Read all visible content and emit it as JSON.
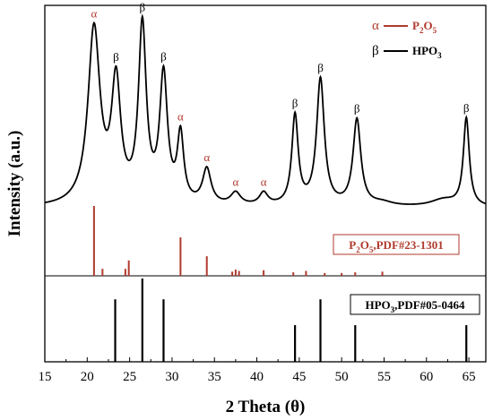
{
  "chart_data": {
    "type": "line",
    "xlabel": "2 Theta (θ)",
    "ylabel": "Intensity (a.u.)",
    "xlim": [
      15,
      67
    ],
    "x_ticks": [
      "15",
      "20",
      "25",
      "30",
      "35",
      "40",
      "45",
      "50",
      "55",
      "60",
      "65"
    ],
    "y_ticks_shown": false,
    "grid": false,
    "legend_position": "top-right",
    "legend": [
      {
        "symbol": "α",
        "sub_parts": [
          "P",
          "2",
          "O",
          "5"
        ],
        "text": "P2O5",
        "color": "#b03a2e"
      },
      {
        "symbol": "β",
        "sub_parts": [
          "HPO",
          "3"
        ],
        "text": "HPO3",
        "color": "#000000"
      }
    ],
    "series": [
      {
        "type": "line",
        "color": "#000000",
        "baseline": 0,
        "peaks": [
          {
            "x": 20.8,
            "h": 1.0,
            "w": 0.85
          },
          {
            "x": 23.4,
            "h": 0.67,
            "w": 0.65
          },
          {
            "x": 26.5,
            "h": 1.0,
            "w": 0.55
          },
          {
            "x": 29.0,
            "h": 0.72,
            "w": 0.55
          },
          {
            "x": 31.0,
            "h": 0.38,
            "w": 0.45
          },
          {
            "x": 34.1,
            "h": 0.2,
            "w": 0.6
          },
          {
            "x": 37.5,
            "h": 0.07,
            "w": 0.7
          },
          {
            "x": 40.8,
            "h": 0.07,
            "w": 0.6
          },
          {
            "x": 44.5,
            "h": 0.51,
            "w": 0.45
          },
          {
            "x": 47.5,
            "h": 0.72,
            "w": 0.55
          },
          {
            "x": 51.8,
            "h": 0.49,
            "w": 0.55
          },
          {
            "x": 54.8,
            "h": 0.02,
            "w": 1.5
          },
          {
            "x": 62.0,
            "h": 0.04,
            "w": 1.8
          },
          {
            "x": 64.7,
            "h": 0.5,
            "w": 0.42
          }
        ]
      }
    ],
    "peak_labels": [
      {
        "x": 20.8,
        "label": "α",
        "color": "#b03a2e"
      },
      {
        "x": 23.4,
        "label": "β",
        "color": "#000000"
      },
      {
        "x": 26.5,
        "label": "β",
        "color": "#000000"
      },
      {
        "x": 29.0,
        "label": "β",
        "color": "#000000"
      },
      {
        "x": 31.0,
        "label": "α",
        "color": "#b03a2e"
      },
      {
        "x": 34.1,
        "label": "α",
        "color": "#b03a2e"
      },
      {
        "x": 37.5,
        "label": "α",
        "color": "#b03a2e"
      },
      {
        "x": 40.8,
        "label": "α",
        "color": "#b03a2e"
      },
      {
        "x": 44.5,
        "label": "β",
        "color": "#000000"
      },
      {
        "x": 47.5,
        "label": "β",
        "color": "#000000"
      },
      {
        "x": 51.8,
        "label": "β",
        "color": "#000000"
      },
      {
        "x": 64.7,
        "label": "β",
        "color": "#000000"
      }
    ],
    "references": [
      {
        "sub_parts": [
          "P",
          "2",
          "O",
          "5",
          ",PDF#23-1301"
        ],
        "name": "P2O5,PDF#23-1301",
        "color": "#b03a2e",
        "label_box": true,
        "sticks": [
          {
            "x": 20.8,
            "h": 1.0
          },
          {
            "x": 21.8,
            "h": 0.1
          },
          {
            "x": 24.5,
            "h": 0.1
          },
          {
            "x": 24.9,
            "h": 0.22
          },
          {
            "x": 31.0,
            "h": 0.55
          },
          {
            "x": 34.1,
            "h": 0.28
          },
          {
            "x": 37.1,
            "h": 0.06
          },
          {
            "x": 37.5,
            "h": 0.09
          },
          {
            "x": 37.9,
            "h": 0.07
          },
          {
            "x": 40.8,
            "h": 0.08
          },
          {
            "x": 44.3,
            "h": 0.05
          },
          {
            "x": 45.8,
            "h": 0.07
          },
          {
            "x": 48.0,
            "h": 0.04
          },
          {
            "x": 50.0,
            "h": 0.04
          },
          {
            "x": 51.6,
            "h": 0.05
          },
          {
            "x": 54.8,
            "h": 0.06
          }
        ]
      },
      {
        "sub_parts": [
          "HPO",
          "3",
          ",PDF#05-0464"
        ],
        "name": "HPO3,PDF#05-0464",
        "color": "#000000",
        "label_box": true,
        "sticks": [
          {
            "x": 23.3,
            "h": 0.75
          },
          {
            "x": 26.5,
            "h": 1.0
          },
          {
            "x": 29.0,
            "h": 0.75
          },
          {
            "x": 44.5,
            "h": 0.44
          },
          {
            "x": 47.5,
            "h": 0.75
          },
          {
            "x": 51.6,
            "h": 0.44
          },
          {
            "x": 64.7,
            "h": 0.44
          }
        ]
      }
    ]
  }
}
